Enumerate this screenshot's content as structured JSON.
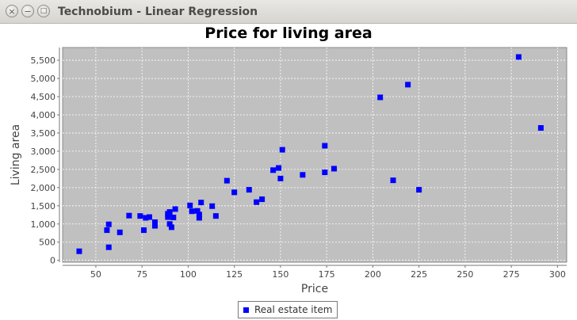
{
  "window": {
    "title": "Technobium - Linear Regression",
    "controls": {
      "close": "×",
      "minimize": "−",
      "maximize": "□"
    }
  },
  "colors": {
    "plot_background": "#c0c0c0",
    "point": "#0000ff",
    "gridline": "#ffffff"
  },
  "chart_data": {
    "type": "scatter",
    "title": "Price for living area",
    "xlabel": "Price",
    "ylabel": "Living area",
    "xlim": [
      32,
      305
    ],
    "ylim": [
      -50,
      5850
    ],
    "xticks": [
      50,
      75,
      100,
      125,
      150,
      175,
      200,
      225,
      250,
      275,
      300
    ],
    "yticks": [
      0,
      500,
      1000,
      1500,
      2000,
      2500,
      3000,
      3500,
      4000,
      4500,
      5000,
      5500
    ],
    "xtick_labels": [
      "50",
      "75",
      "100",
      "125",
      "150",
      "175",
      "200",
      "225",
      "250",
      "275",
      "300"
    ],
    "ytick_labels": [
      "0",
      "500",
      "1,000",
      "1,500",
      "2,000",
      "2,500",
      "3,000",
      "3,500",
      "4,000",
      "4,500",
      "5,000",
      "5,500"
    ],
    "grid": true,
    "legend_position": "bottom-center",
    "series": [
      {
        "name": "Real estate item",
        "points": [
          [
            41,
            250
          ],
          [
            56,
            830
          ],
          [
            57,
            990
          ],
          [
            57,
            360
          ],
          [
            63,
            770
          ],
          [
            68,
            1230
          ],
          [
            74,
            1220
          ],
          [
            76,
            830
          ],
          [
            77,
            1170
          ],
          [
            79,
            1190
          ],
          [
            82,
            950
          ],
          [
            82,
            1050
          ],
          [
            89,
            1190
          ],
          [
            89,
            1280
          ],
          [
            90,
            1000
          ],
          [
            90,
            1330
          ],
          [
            91,
            910
          ],
          [
            92,
            1180
          ],
          [
            93,
            1410
          ],
          [
            101,
            1510
          ],
          [
            102,
            1350
          ],
          [
            105,
            1360
          ],
          [
            106,
            1260
          ],
          [
            106,
            1170
          ],
          [
            107,
            1590
          ],
          [
            113,
            1490
          ],
          [
            115,
            1220
          ],
          [
            121,
            2190
          ],
          [
            125,
            1870
          ],
          [
            133,
            1940
          ],
          [
            137,
            1600
          ],
          [
            140,
            1680
          ],
          [
            146,
            2480
          ],
          [
            149,
            2540
          ],
          [
            150,
            2250
          ],
          [
            151,
            3040
          ],
          [
            162,
            2350
          ],
          [
            174,
            3150
          ],
          [
            174,
            2420
          ],
          [
            179,
            2520
          ],
          [
            204,
            4480
          ],
          [
            211,
            2200
          ],
          [
            219,
            4830
          ],
          [
            225,
            1940
          ],
          [
            279,
            5590
          ],
          [
            291,
            3640
          ]
        ]
      }
    ]
  }
}
